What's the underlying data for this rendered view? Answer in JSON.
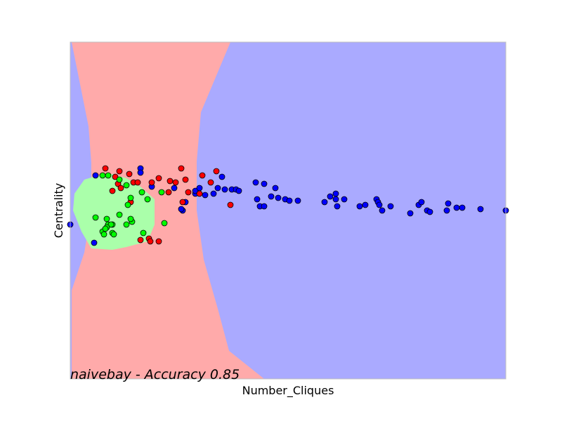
{
  "chart_data": {
    "type": "scatter",
    "title": "",
    "xlabel": "Number_Cliques",
    "ylabel": "Centrality",
    "annotation": "naivebay - Accuracy 0.85",
    "xlim": [
      0,
      31
    ],
    "ylim": [
      -12,
      12
    ],
    "grid": false,
    "ticks_visible": false,
    "colors": {
      "region_blue": "#aaaaff",
      "region_red": "#ffaaaa",
      "region_green": "#aaffaa",
      "point_blue": "#0000ff",
      "point_red": "#ff0000",
      "point_green": "#00ff00",
      "edge": "#000000",
      "frame": "#bfbfbf"
    },
    "regions": {
      "red_boundary": [
        [
          0.1,
          12
        ],
        [
          11.4,
          12
        ],
        [
          9.3,
          7
        ],
        [
          9.0,
          3.5
        ],
        [
          9.0,
          0
        ],
        [
          9.5,
          -3.5
        ],
        [
          10.5,
          -7
        ],
        [
          11.3,
          -10
        ],
        [
          13.8,
          -12
        ],
        [
          0.1,
          -12
        ],
        [
          0.1,
          -5.7
        ],
        [
          1.0,
          -3
        ],
        [
          1.5,
          0
        ],
        [
          1.5,
          3.4
        ],
        [
          1.3,
          6
        ],
        [
          0.1,
          12
        ]
      ],
      "green_blob": [
        [
          1.0,
          2.2
        ],
        [
          2.0,
          2.5
        ],
        [
          3.0,
          2.6
        ],
        [
          4.0,
          2.3
        ],
        [
          5.0,
          1.7
        ],
        [
          6.0,
          0.8
        ],
        [
          6.0,
          -1.0
        ],
        [
          5.5,
          -2.2
        ],
        [
          4.0,
          -2.6
        ],
        [
          3.0,
          -2.8
        ],
        [
          1.5,
          -2.7
        ],
        [
          0.8,
          -1.5
        ],
        [
          0.2,
          0
        ],
        [
          0.3,
          1.2
        ]
      ]
    },
    "series": [
      {
        "name": "",
        "color": "#0000ff",
        "points": [
          [
            0.0,
            -1.0
          ],
          [
            1.8,
            2.5
          ],
          [
            5.0,
            3.0
          ],
          [
            5.0,
            2.7
          ],
          [
            7.4,
            1.6
          ],
          [
            10.8,
            2.4
          ],
          [
            8.0,
            0.0
          ],
          [
            13.2,
            2.0
          ],
          [
            13.8,
            1.9
          ],
          [
            14.6,
            1.6
          ],
          [
            8.9,
            1.2
          ],
          [
            8.9,
            1.4
          ],
          [
            11.0,
            1.5
          ],
          [
            11.5,
            1.5
          ],
          [
            11.8,
            1.5
          ],
          [
            12.0,
            1.4
          ],
          [
            9.6,
            1.1
          ],
          [
            10.2,
            1.2
          ],
          [
            9.2,
            1.6
          ],
          [
            10.5,
            1.6
          ],
          [
            8.2,
            0.6
          ],
          [
            7.9,
            0.1
          ],
          [
            13.3,
            0.8
          ],
          [
            13.5,
            0.3
          ],
          [
            13.8,
            0.3
          ],
          [
            14.3,
            1.0
          ],
          [
            14.8,
            0.9
          ],
          [
            15.3,
            0.8
          ],
          [
            15.6,
            0.7
          ],
          [
            16.2,
            0.7
          ],
          [
            18.1,
            0.6
          ],
          [
            18.5,
            1.0
          ],
          [
            18.9,
            1.2
          ],
          [
            18.9,
            0.8
          ],
          [
            19.0,
            0.3
          ],
          [
            19.5,
            0.8
          ],
          [
            20.6,
            0.3
          ],
          [
            21.0,
            0.4
          ],
          [
            21.8,
            0.8
          ],
          [
            21.9,
            0.6
          ],
          [
            22.0,
            0.4
          ],
          [
            22.2,
            0.0
          ],
          [
            22.8,
            0.3
          ],
          [
            24.2,
            -0.2
          ],
          [
            24.8,
            0.4
          ],
          [
            25.0,
            0.6
          ],
          [
            25.4,
            0.0
          ],
          [
            25.6,
            -0.1
          ],
          [
            26.8,
            0.0
          ],
          [
            26.9,
            0.5
          ],
          [
            27.5,
            0.2
          ],
          [
            27.9,
            0.2
          ],
          [
            29.2,
            0.1
          ],
          [
            31.0,
            0.0
          ],
          [
            1.7,
            -2.3
          ],
          [
            5.8,
            1.7
          ]
        ]
      },
      {
        "name": "",
        "color": "#ff0000",
        "points": [
          [
            2.5,
            3.0
          ],
          [
            3.5,
            2.8
          ],
          [
            4.2,
            2.6
          ],
          [
            3.2,
            2.4
          ],
          [
            3.4,
            1.9
          ],
          [
            3.6,
            1.6
          ],
          [
            4.5,
            2.0
          ],
          [
            4.8,
            2.0
          ],
          [
            5.8,
            2.0
          ],
          [
            6.3,
            2.3
          ],
          [
            7.1,
            2.1
          ],
          [
            7.5,
            2.0
          ],
          [
            7.9,
            3.0
          ],
          [
            8.2,
            2.2
          ],
          [
            9.4,
            2.5
          ],
          [
            10.4,
            2.8
          ],
          [
            10.0,
            2.0
          ],
          [
            9.2,
            1.2
          ],
          [
            3.0,
            1.4
          ],
          [
            7.0,
            1.3
          ],
          [
            8.4,
            1.3
          ],
          [
            8.0,
            0.6
          ],
          [
            11.4,
            0.4
          ],
          [
            4.3,
            0.6
          ],
          [
            5.0,
            -2.1
          ],
          [
            5.6,
            -2.0
          ],
          [
            5.7,
            -2.2
          ],
          [
            6.3,
            -2.2
          ]
        ]
      },
      {
        "name": "",
        "color": "#00ff00",
        "points": [
          [
            2.3,
            2.5
          ],
          [
            2.7,
            2.5
          ],
          [
            3.5,
            2.2
          ],
          [
            4.0,
            1.8
          ],
          [
            5.1,
            1.3
          ],
          [
            6.5,
            1.3
          ],
          [
            4.3,
            0.9
          ],
          [
            4.1,
            0.4
          ],
          [
            5.5,
            0.8
          ],
          [
            1.8,
            -0.5
          ],
          [
            2.6,
            -0.6
          ],
          [
            3.5,
            -0.3
          ],
          [
            4.0,
            -1.0
          ],
          [
            4.4,
            -0.8
          ],
          [
            4.3,
            -0.6
          ],
          [
            3.0,
            -1.0
          ],
          [
            2.7,
            -1.0
          ],
          [
            2.9,
            -1.0
          ],
          [
            2.6,
            -1.2
          ],
          [
            2.3,
            -1.5
          ],
          [
            2.5,
            -1.3
          ],
          [
            3.0,
            -1.6
          ],
          [
            2.4,
            -1.7
          ],
          [
            3.1,
            -1.7
          ],
          [
            5.2,
            -1.6
          ],
          [
            6.7,
            -0.9
          ]
        ]
      }
    ]
  }
}
